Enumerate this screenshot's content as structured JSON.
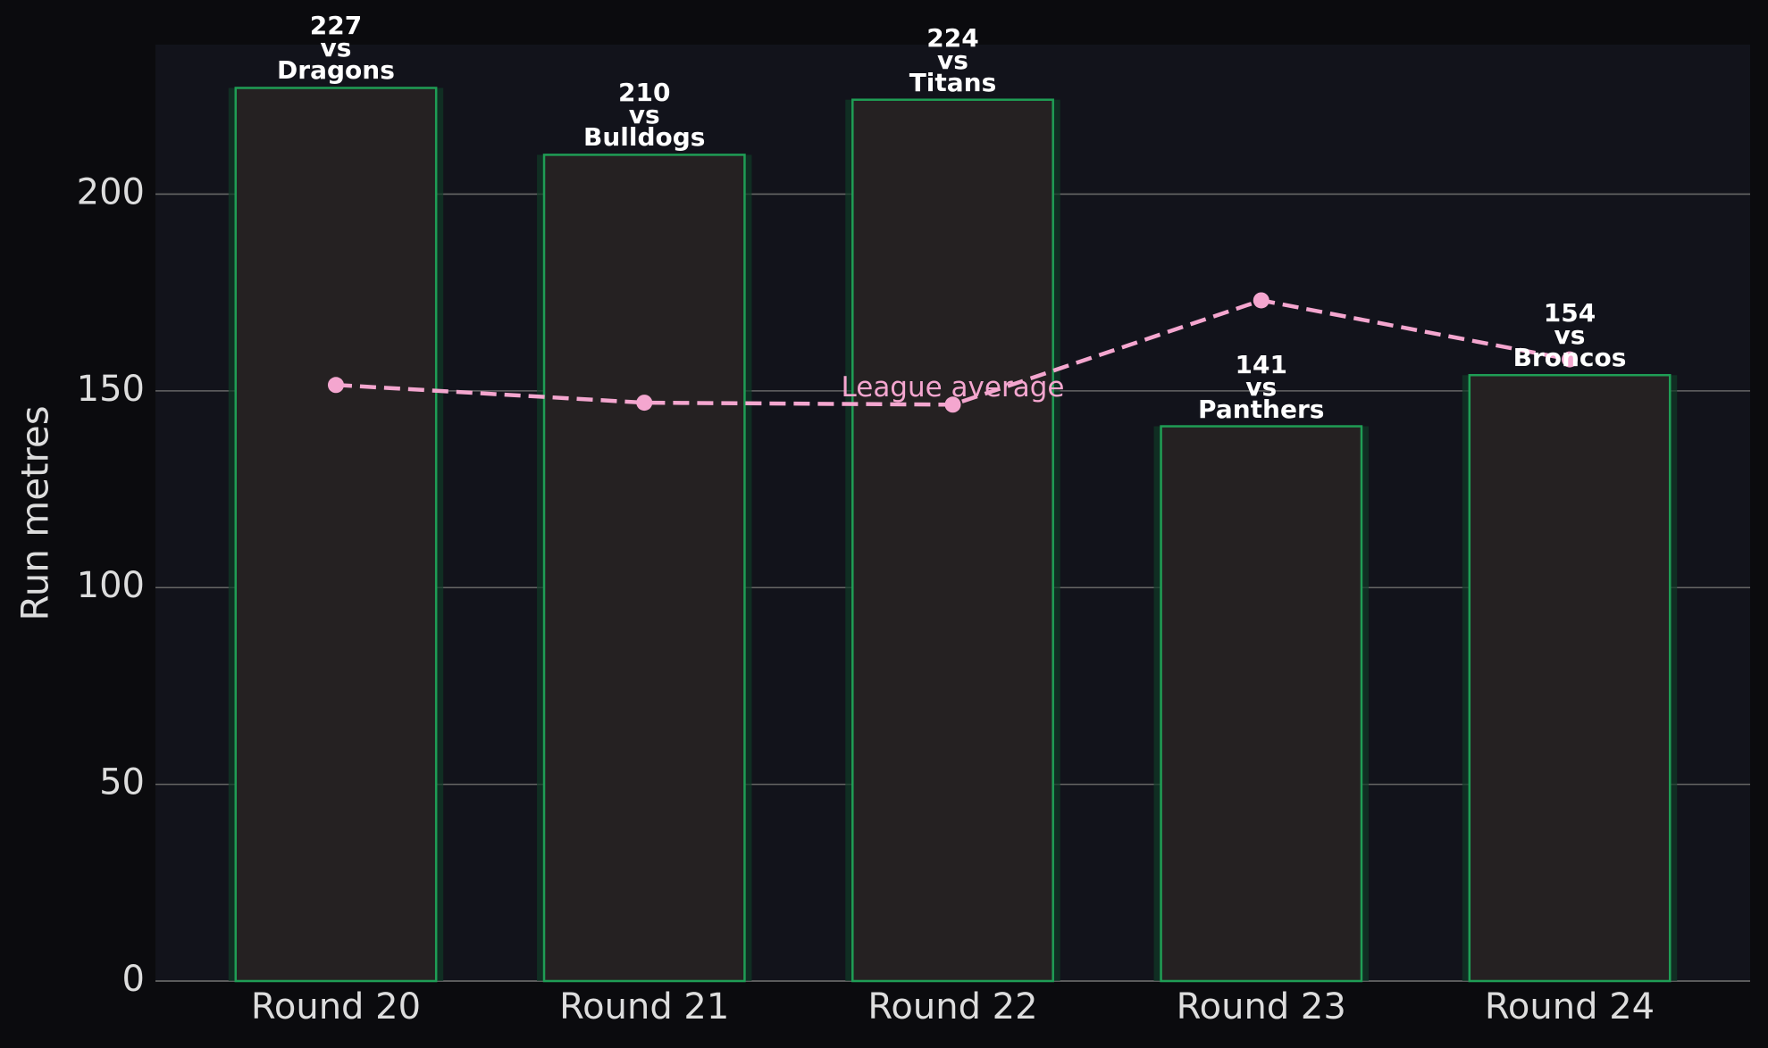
{
  "chart_data": {
    "type": "bar",
    "y_label": "Run metres",
    "categories": [
      "Round 20",
      "Round 21",
      "Round 22",
      "Round 23",
      "Round 24"
    ],
    "series": [
      {
        "type": "bar",
        "color": "#252122",
        "edgecolor": "#1f9d55",
        "values": [
          227,
          210,
          224,
          141,
          154
        ],
        "value_labels": [
          "227\nvs\nDragons",
          "210\nvs\nBulldogs",
          "224\nvs\nTitans",
          "141\nvs\nPanthers",
          "154\nvs\nBroncos"
        ]
      },
      {
        "type": "line",
        "name": "League average",
        "color": "#f4a6cf",
        "values": [
          151.5,
          147,
          146.5,
          173,
          158
        ]
      }
    ],
    "ylim": [
      0,
      238
    ],
    "yticks": [
      0,
      50,
      100,
      150,
      200
    ],
    "grid": true
  }
}
